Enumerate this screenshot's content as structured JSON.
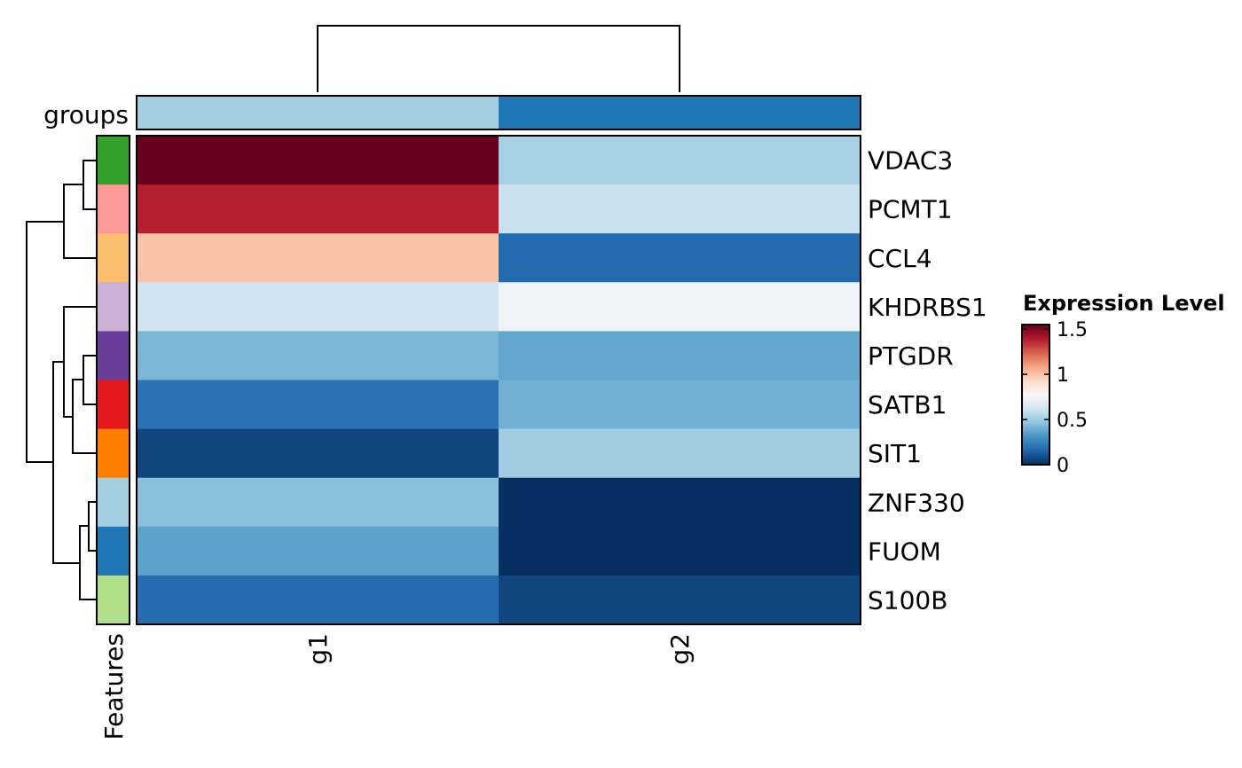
{
  "chart_data": {
    "type": "heatmap",
    "columns": [
      "g1",
      "g2"
    ],
    "rows": [
      "VDAC3",
      "PCMT1",
      "CCL4",
      "KHDRBS1",
      "PTGDR",
      "SATB1",
      "SIT1",
      "ZNF330",
      "FUOM",
      "S100B"
    ],
    "values": [
      [
        1.55,
        0.52
      ],
      [
        1.38,
        0.6
      ],
      [
        1.0,
        0.17
      ],
      [
        0.62,
        0.75
      ],
      [
        0.42,
        0.37
      ],
      [
        0.2,
        0.4
      ],
      [
        0.06,
        0.5
      ],
      [
        0.45,
        0.0
      ],
      [
        0.36,
        0.0
      ],
      [
        0.18,
        0.06
      ]
    ],
    "color_range": [
      0,
      1.55
    ],
    "colorscale": [
      "#053061",
      "#2166ac",
      "#4393c3",
      "#92c5de",
      "#d1e5f0",
      "#f7f7f7",
      "#fddbc7",
      "#f4a582",
      "#d6604d",
      "#b2182b",
      "#67001f"
    ],
    "group_annotation": {
      "label": "groups",
      "values": [
        "g1",
        "g2"
      ],
      "colors": [
        "#a6cee3",
        "#1f78b4"
      ]
    },
    "feature_annotation": {
      "label": "Features",
      "colors": [
        "#33a02c",
        "#fb9a99",
        "#fdbf6f",
        "#cab2d6",
        "#6a3d9a",
        "#e31a1c",
        "#ff7f00",
        "#a6cee3",
        "#1f78b4",
        "#b2df8a"
      ]
    },
    "legend": {
      "title": "Expression Level",
      "ticks": [
        "1.5",
        "1",
        "0.5",
        "0"
      ],
      "tick_values": [
        1.5,
        1.0,
        0.5,
        0.0
      ]
    },
    "dendrograms": [
      "columns",
      "rows"
    ]
  }
}
